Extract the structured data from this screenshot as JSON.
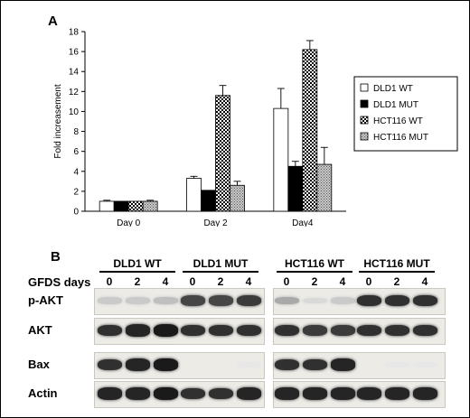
{
  "panel_a_label": "A",
  "panel_b_label": "B",
  "chart_data": {
    "type": "bar",
    "categories": [
      "Day 0",
      "Day 2",
      "Day4"
    ],
    "series": [
      {
        "name": "DLD1 WT",
        "values": [
          1.0,
          3.3,
          10.3
        ],
        "errors": [
          0.1,
          0.2,
          2.0
        ],
        "color": "#ffffff",
        "pattern": "none"
      },
      {
        "name": "DLD1 MUT",
        "values": [
          1.0,
          2.1,
          4.5
        ],
        "errors": [
          0.0,
          0.0,
          0.5
        ],
        "color": "#000000",
        "pattern": "solid"
      },
      {
        "name": "HCT116 WT",
        "values": [
          1.0,
          11.6,
          16.2
        ],
        "errors": [
          0.0,
          1.0,
          0.9
        ],
        "color": "#ffffff",
        "pattern": "dots"
      },
      {
        "name": "HCT116 MUT",
        "values": [
          1.0,
          2.6,
          4.7
        ],
        "errors": [
          0.1,
          0.4,
          1.7
        ],
        "color": "#b0b0b0",
        "pattern": "dither"
      }
    ],
    "ylabel": "Fold increasement",
    "ylim": [
      0,
      18
    ],
    "yticks": [
      0,
      2,
      4,
      6,
      8,
      10,
      12,
      14,
      16,
      18
    ],
    "legend": "right",
    "grid": false
  },
  "blot": {
    "row_header": "GFDS days",
    "groups": [
      {
        "title": "DLD1 WT",
        "days": [
          "0",
          "2",
          "4"
        ]
      },
      {
        "title": "DLD1 MUT",
        "days": [
          "0",
          "2",
          "4"
        ]
      },
      {
        "title": "HCT116 WT",
        "days": [
          "0",
          "2",
          "4"
        ]
      },
      {
        "title": "HCT116 MUT",
        "days": [
          "0",
          "2",
          "4"
        ]
      }
    ],
    "rows": [
      {
        "label": "p-AKT",
        "levels": [
          0.15,
          0.15,
          0.2,
          0.75,
          0.75,
          0.8,
          0.3,
          0.08,
          0.15,
          0.85,
          0.85,
          0.85
        ]
      },
      {
        "label": "AKT",
        "levels": [
          0.85,
          0.9,
          0.95,
          0.85,
          0.85,
          0.85,
          0.85,
          0.8,
          0.8,
          0.85,
          0.85,
          0.85
        ]
      },
      {
        "label": "Bax",
        "levels": [
          0.85,
          0.9,
          0.95,
          0.0,
          0.0,
          0.02,
          0.85,
          0.85,
          0.9,
          0.0,
          0.02,
          0.02
        ]
      },
      {
        "label": "Actin",
        "levels": [
          0.9,
          0.9,
          0.95,
          0.85,
          0.85,
          0.9,
          0.9,
          0.9,
          0.9,
          0.9,
          0.9,
          0.9
        ]
      }
    ]
  }
}
